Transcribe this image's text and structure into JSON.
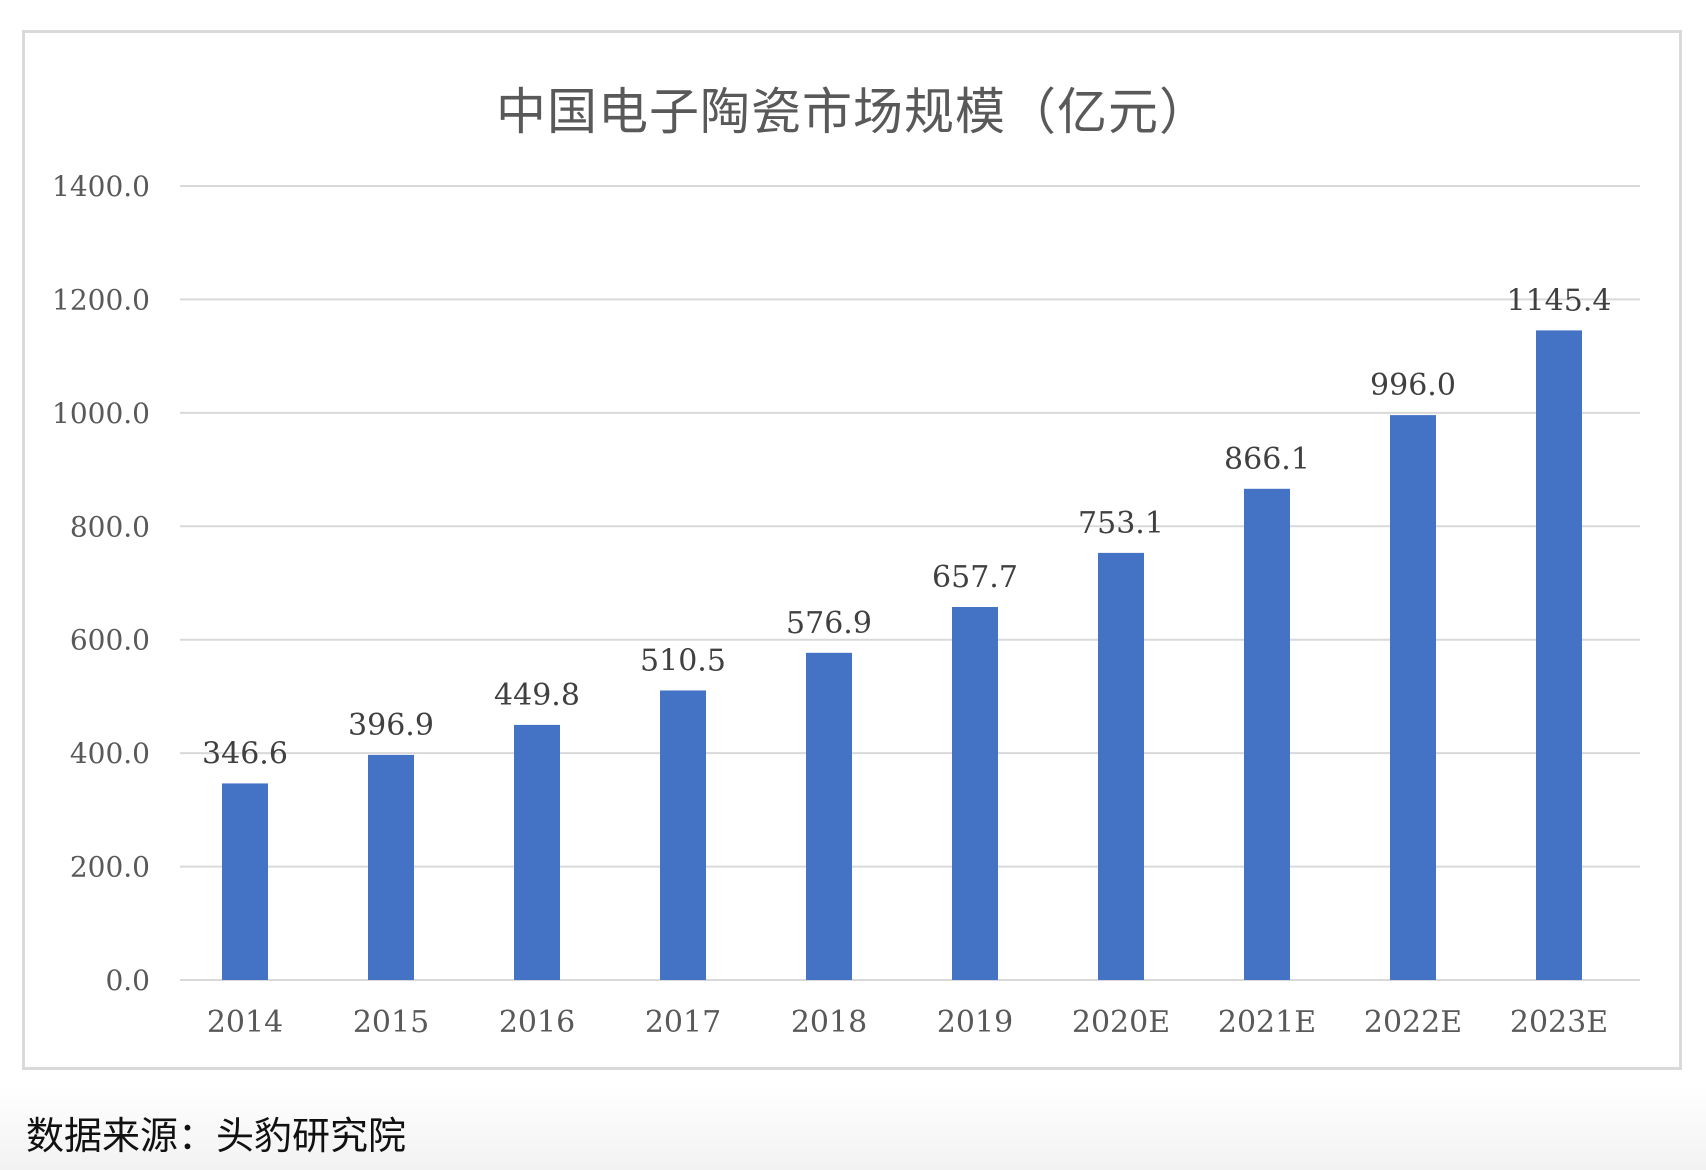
{
  "chart_data": {
    "type": "bar",
    "title": "中国电子陶瓷市场规模（亿元）",
    "categories": [
      "2014",
      "2015",
      "2016",
      "2017",
      "2018",
      "2019",
      "2020E",
      "2021E",
      "2022E",
      "2023E"
    ],
    "values": [
      346.6,
      396.9,
      449.8,
      510.5,
      576.9,
      657.7,
      753.1,
      866.1,
      996.0,
      1145.4
    ],
    "data_labels": [
      "346.6",
      "396.9",
      "449.8",
      "510.5",
      "576.9",
      "657.7",
      "753.1",
      "866.1",
      "996.0",
      "1145.4"
    ],
    "yticks": [
      "0.0",
      "200.0",
      "400.0",
      "600.0",
      "800.0",
      "1000.0",
      "1200.0",
      "1400.0"
    ],
    "ylim": [
      0,
      1400
    ],
    "grid": true,
    "legend": "none",
    "bar_color": "#4472c4",
    "grid_color": "#d9d9d9"
  },
  "source_note": "数据来源：头豹研究院"
}
